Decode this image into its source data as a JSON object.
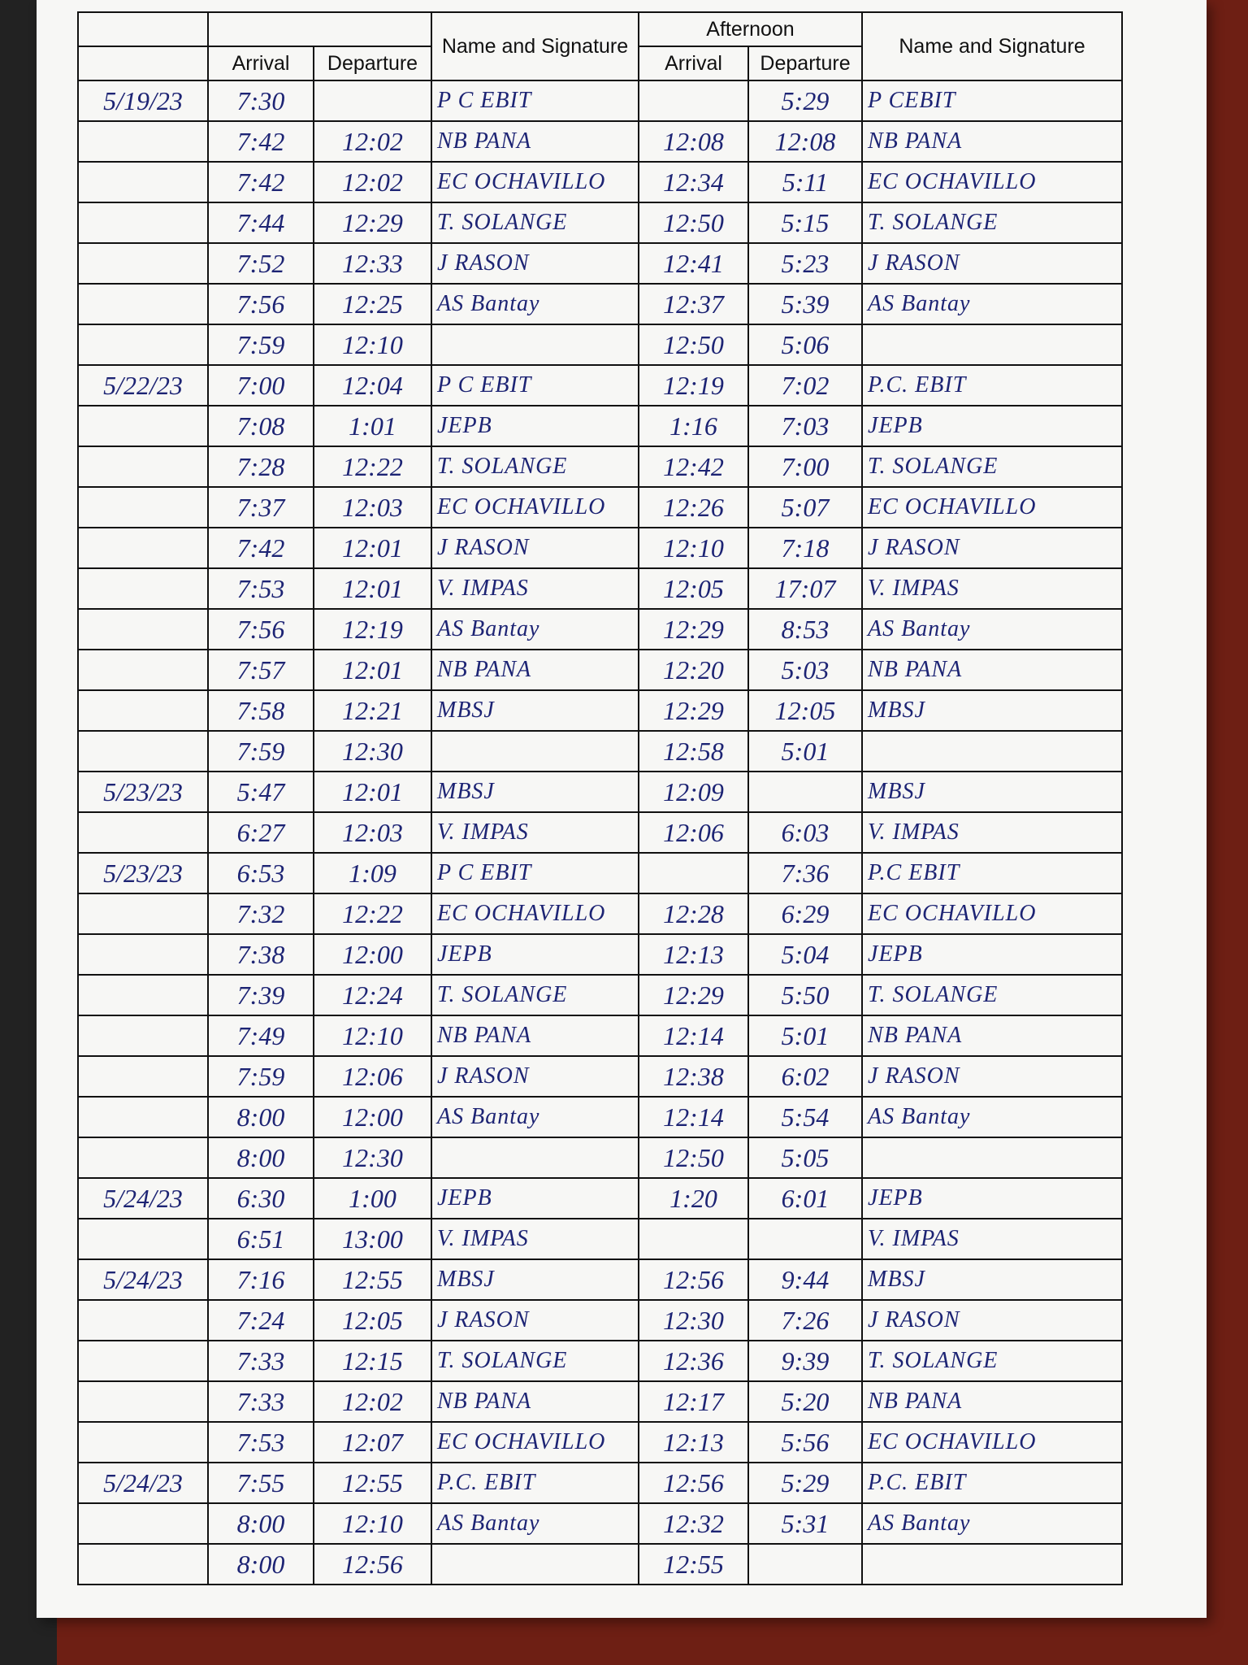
{
  "header": {
    "am_arrival": "Arrival",
    "am_departure": "Departure",
    "am_name": "Name and Signature",
    "afternoon": "Afternoon",
    "pm_arrival": "Arrival",
    "pm_departure": "Departure",
    "pm_name": "Name and Signature"
  },
  "rows": [
    {
      "date": "5/19/23",
      "am_arrival": "7:30",
      "am_name": "P C EBIT",
      "pm_departure": "5:29",
      "pm_name": "P CEBIT"
    },
    {
      "am_arrival": "7:42",
      "am_departure": "12:02",
      "am_name": "NB PANA",
      "pm_arrival": "12:08",
      "pm_departure": "12:08",
      "pm_name": "NB PANA"
    },
    {
      "am_arrival": "7:42",
      "am_departure": "12:02",
      "am_name": "EC OCHAVILLO",
      "pm_arrival": "12:34",
      "pm_departure": "5:11",
      "pm_name": "EC OCHAVILLO"
    },
    {
      "am_arrival": "7:44",
      "am_departure": "12:29",
      "am_name": "T. SOLANGE",
      "pm_arrival": "12:50",
      "pm_departure": "5:15",
      "pm_name": "T. SOLANGE"
    },
    {
      "am_arrival": "7:52",
      "am_departure": "12:33",
      "am_name": "J RASON",
      "pm_arrival": "12:41",
      "pm_departure": "5:23",
      "pm_name": "J RASON"
    },
    {
      "am_arrival": "7:56",
      "am_departure": "12:25",
      "am_name": "AS Bantay",
      "pm_arrival": "12:37",
      "pm_departure": "5:39",
      "pm_name": "AS Bantay"
    },
    {
      "am_arrival": "7:59",
      "am_departure": "12:10",
      "pm_arrival": "12:50",
      "pm_departure": "5:06"
    },
    {
      "date": "5/22/23",
      "am_arrival": "7:00",
      "am_departure": "12:04",
      "am_name": "P C EBIT",
      "pm_arrival": "12:19",
      "pm_departure": "7:02",
      "pm_name": "P.C. EBIT"
    },
    {
      "am_arrival": "7:08",
      "am_departure": "1:01",
      "am_name": "JEPB",
      "pm_arrival": "1:16",
      "pm_departure": "7:03",
      "pm_name": "JEPB"
    },
    {
      "am_arrival": "7:28",
      "am_departure": "12:22",
      "am_name": "T. SOLANGE",
      "pm_arrival": "12:42",
      "pm_departure": "7:00",
      "pm_name": "T. SOLANGE"
    },
    {
      "am_arrival": "7:37",
      "am_departure": "12:03",
      "am_name": "EC OCHAVILLO",
      "pm_arrival": "12:26",
      "pm_departure": "5:07",
      "pm_name": "EC OCHAVILLO"
    },
    {
      "am_arrival": "7:42",
      "am_departure": "12:01",
      "am_name": "J RASON",
      "pm_arrival": "12:10",
      "pm_departure": "7:18",
      "pm_name": "J RASON"
    },
    {
      "am_arrival": "7:53",
      "am_departure": "12:01",
      "am_name": "V. IMPAS",
      "pm_arrival": "12:05",
      "pm_departure": "17:07",
      "pm_name": "V. IMPAS"
    },
    {
      "am_arrival": "7:56",
      "am_departure": "12:19",
      "am_name": "AS Bantay",
      "pm_arrival": "12:29",
      "pm_departure": "8:53",
      "pm_name": "AS Bantay"
    },
    {
      "am_arrival": "7:57",
      "am_departure": "12:01",
      "am_name": "NB PANA",
      "pm_arrival": "12:20",
      "pm_departure": "5:03",
      "pm_name": "NB PANA"
    },
    {
      "am_arrival": "7:58",
      "am_departure": "12:21",
      "am_name": "MBSJ",
      "pm_arrival": "12:29",
      "pm_departure": "12:05",
      "pm_name": "MBSJ"
    },
    {
      "am_arrival": "7:59",
      "am_departure": "12:30",
      "pm_arrival": "12:58",
      "pm_departure": "5:01"
    },
    {
      "date": "5/23/23",
      "am_arrival": "5:47",
      "am_departure": "12:01",
      "am_name": "MBSJ",
      "pm_arrival": "12:09",
      "pm_name": "MBSJ"
    },
    {
      "am_arrival": "6:27",
      "am_departure": "12:03",
      "am_name": "V. IMPAS",
      "pm_arrival": "12:06",
      "pm_departure": "6:03",
      "pm_name": "V. IMPAS"
    },
    {
      "date": "5/23/23",
      "am_arrival": "6:53",
      "am_departure": "1:09",
      "am_name": "P C EBIT",
      "pm_departure": "7:36",
      "pm_name": "P.C EBIT"
    },
    {
      "am_arrival": "7:32",
      "am_departure": "12:22",
      "am_name": "EC OCHAVILLO",
      "pm_arrival": "12:28",
      "pm_departure": "6:29",
      "pm_name": "EC OCHAVILLO"
    },
    {
      "am_arrival": "7:38",
      "am_departure": "12:00",
      "am_name": "JEPB",
      "pm_arrival": "12:13",
      "pm_departure": "5:04",
      "pm_name": "JEPB"
    },
    {
      "am_arrival": "7:39",
      "am_departure": "12:24",
      "am_name": "T. SOLANGE",
      "pm_arrival": "12:29",
      "pm_departure": "5:50",
      "pm_name": "T. SOLANGE"
    },
    {
      "am_arrival": "7:49",
      "am_departure": "12:10",
      "am_name": "NB PANA",
      "pm_arrival": "12:14",
      "pm_departure": "5:01",
      "pm_name": "NB PANA"
    },
    {
      "am_arrival": "7:59",
      "am_departure": "12:06",
      "am_name": "J RASON",
      "pm_arrival": "12:38",
      "pm_departure": "6:02",
      "pm_name": "J RASON"
    },
    {
      "am_arrival": "8:00",
      "am_departure": "12:00",
      "am_name": "AS Bantay",
      "pm_arrival": "12:14",
      "pm_departure": "5:54",
      "pm_name": "AS Bantay"
    },
    {
      "am_arrival": "8:00",
      "am_departure": "12:30",
      "pm_arrival": "12:50",
      "pm_departure": "5:05"
    },
    {
      "date": "5/24/23",
      "am_arrival": "6:30",
      "am_departure": "1:00",
      "am_name": "JEPB",
      "pm_arrival": "1:20",
      "pm_departure": "6:01",
      "pm_name": "JEPB"
    },
    {
      "am_arrival": "6:51",
      "am_departure": "13:00",
      "am_name": "V. IMPAS",
      "pm_name": "V. IMPAS"
    },
    {
      "date": "5/24/23",
      "am_arrival": "7:16",
      "am_departure": "12:55",
      "am_name": "MBSJ",
      "pm_arrival": "12:56",
      "pm_departure": "9:44",
      "pm_name": "MBSJ"
    },
    {
      "am_arrival": "7:24",
      "am_departure": "12:05",
      "am_name": "J RASON",
      "pm_arrival": "12:30",
      "pm_departure": "7:26",
      "pm_name": "J RASON"
    },
    {
      "am_arrival": "7:33",
      "am_departure": "12:15",
      "am_name": "T. SOLANGE",
      "pm_arrival": "12:36",
      "pm_departure": "9:39",
      "pm_name": "T. SOLANGE"
    },
    {
      "am_arrival": "7:33",
      "am_departure": "12:02",
      "am_name": "NB PANA",
      "pm_arrival": "12:17",
      "pm_departure": "5:20",
      "pm_name": "NB PANA"
    },
    {
      "am_arrival": "7:53",
      "am_departure": "12:07",
      "am_name": "EC OCHAVILLO",
      "pm_arrival": "12:13",
      "pm_departure": "5:56",
      "pm_name": "EC OCHAVILLO"
    },
    {
      "date": "5/24/23",
      "am_arrival": "7:55",
      "am_departure": "12:55",
      "am_name": "P.C. EBIT",
      "pm_arrival": "12:56",
      "pm_departure": "5:29",
      "pm_name": "P.C. EBIT"
    },
    {
      "am_arrival": "8:00",
      "am_departure": "12:10",
      "am_name": "AS Bantay",
      "pm_arrival": "12:32",
      "pm_departure": "5:31",
      "pm_name": "AS Bantay"
    },
    {
      "am_arrival": "8:00",
      "am_departure": "12:56",
      "pm_arrival": "12:55"
    }
  ]
}
